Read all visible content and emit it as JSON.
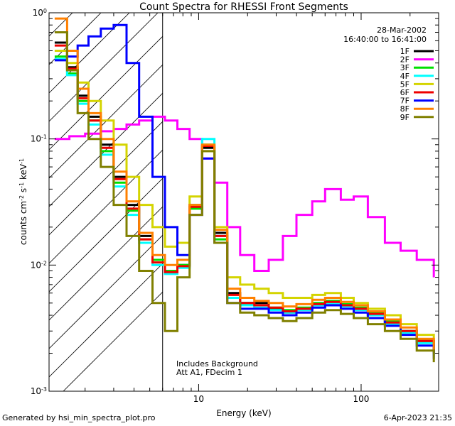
{
  "chart_data": {
    "type": "line",
    "title": "Count Spectra for RHESSI Front Segments",
    "xlabel": "Energy (keV)",
    "ylabel": "counts cm-2 s-1 keV-1",
    "xscale": "log",
    "yscale": "log",
    "xlim": [
      1.2,
      300
    ],
    "ylim": [
      0.001,
      1.0
    ],
    "x_tick_labels": [
      "10",
      "100"
    ],
    "y_tick_labels": [
      {
        "base": "10",
        "exp": "0",
        "value": 1
      },
      {
        "base": "10",
        "exp": "-1",
        "value": 0.1
      },
      {
        "base": "10",
        "exp": "-2",
        "value": 0.01
      },
      {
        "base": "10",
        "exp": "-3",
        "value": 0.001
      }
    ],
    "date": "28-Mar-2002",
    "time_range": "16:40:00 to 16:41:00",
    "annotations": [
      "Includes Background",
      "Att A1, FDecim 1"
    ],
    "shaded_region": {
      "x": [
        1.2,
        6.0
      ],
      "pattern": "diagonal hatch"
    },
    "legend_position": "top-right",
    "series": [
      {
        "name": "1F",
        "color": "#000000",
        "x": [
          1.3,
          1.55,
          1.8,
          2.1,
          2.5,
          3.0,
          3.6,
          4.3,
          5.2,
          6.2,
          7.4,
          8.8,
          10.5,
          12.5,
          15,
          18,
          22,
          27,
          33,
          40,
          50,
          60,
          75,
          90,
          110,
          140,
          175,
          220,
          280
        ],
        "y": [
          0.58,
          0.37,
          0.22,
          0.15,
          0.09,
          0.05,
          0.03,
          0.017,
          0.011,
          0.009,
          0.01,
          0.03,
          0.085,
          0.018,
          0.006,
          0.005,
          0.005,
          0.0045,
          0.0042,
          0.0045,
          0.0048,
          0.005,
          0.0048,
          0.0045,
          0.004,
          0.0035,
          0.003,
          0.0025,
          0.002
        ]
      },
      {
        "name": "2F",
        "color": "#ff00ff",
        "x": [
          1.3,
          1.6,
          2.0,
          2.5,
          3.0,
          3.6,
          4.3,
          5.2,
          6.2,
          7.4,
          8.8,
          10.5,
          12.5,
          15,
          18,
          22,
          27,
          33,
          40,
          50,
          60,
          75,
          90,
          110,
          140,
          175,
          220,
          280
        ],
        "y": [
          0.1,
          0.105,
          0.11,
          0.115,
          0.12,
          0.13,
          0.14,
          0.15,
          0.14,
          0.12,
          0.1,
          0.07,
          0.045,
          0.02,
          0.012,
          0.009,
          0.011,
          0.017,
          0.025,
          0.032,
          0.04,
          0.033,
          0.035,
          0.024,
          0.015,
          0.013,
          0.011,
          0.008
        ]
      },
      {
        "name": "3F",
        "color": "#00e000",
        "x": [
          1.3,
          1.55,
          1.8,
          2.1,
          2.5,
          3.0,
          3.6,
          4.3,
          5.2,
          6.2,
          7.4,
          8.8,
          10.5,
          12.5,
          15,
          18,
          22,
          27,
          33,
          40,
          50,
          60,
          75,
          90,
          110,
          140,
          175,
          220,
          280
        ],
        "y": [
          0.45,
          0.33,
          0.2,
          0.14,
          0.08,
          0.045,
          0.027,
          0.016,
          0.011,
          0.009,
          0.01,
          0.028,
          0.09,
          0.016,
          0.0055,
          0.005,
          0.0048,
          0.0046,
          0.0044,
          0.0046,
          0.005,
          0.0052,
          0.0049,
          0.0046,
          0.0042,
          0.0036,
          0.003,
          0.0025,
          0.002
        ]
      },
      {
        "name": "4F",
        "color": "#00ffff",
        "x": [
          1.3,
          1.55,
          1.8,
          2.1,
          2.5,
          3.0,
          3.6,
          4.3,
          5.2,
          6.2,
          7.4,
          8.8,
          10.5,
          12.5,
          15,
          18,
          22,
          27,
          33,
          40,
          50,
          60,
          75,
          90,
          110,
          140,
          175,
          220,
          280
        ],
        "y": [
          0.43,
          0.32,
          0.19,
          0.13,
          0.075,
          0.042,
          0.025,
          0.015,
          0.01,
          0.0085,
          0.0095,
          0.03,
          0.1,
          0.017,
          0.0055,
          0.0048,
          0.0046,
          0.0044,
          0.0042,
          0.0044,
          0.0048,
          0.005,
          0.0047,
          0.0044,
          0.004,
          0.0034,
          0.0029,
          0.0024,
          0.0019
        ]
      },
      {
        "name": "5F",
        "color": "#d4d400",
        "x": [
          1.3,
          1.55,
          1.8,
          2.1,
          2.5,
          3.0,
          3.6,
          4.3,
          5.2,
          6.2,
          7.4,
          8.8,
          10.5,
          12.5,
          15,
          18,
          22,
          27,
          33,
          40,
          50,
          60,
          75,
          90,
          110,
          140,
          175,
          220,
          280
        ],
        "y": [
          0.5,
          0.4,
          0.28,
          0.2,
          0.14,
          0.09,
          0.05,
          0.03,
          0.02,
          0.014,
          0.015,
          0.035,
          0.08,
          0.02,
          0.008,
          0.007,
          0.0065,
          0.006,
          0.0055,
          0.0055,
          0.0058,
          0.006,
          0.0055,
          0.005,
          0.0045,
          0.004,
          0.0034,
          0.0028,
          0.0023
        ]
      },
      {
        "name": "6F",
        "color": "#ee0000",
        "x": [
          1.3,
          1.55,
          1.8,
          2.1,
          2.5,
          3.0,
          3.6,
          4.3,
          5.2,
          6.2,
          7.4,
          8.8,
          10.5,
          12.5,
          15,
          18,
          22,
          27,
          33,
          40,
          50,
          60,
          75,
          90,
          110,
          140,
          175,
          220,
          280
        ],
        "y": [
          0.55,
          0.36,
          0.21,
          0.14,
          0.085,
          0.048,
          0.028,
          0.016,
          0.0105,
          0.0088,
          0.0098,
          0.029,
          0.088,
          0.017,
          0.0058,
          0.005,
          0.0048,
          0.0046,
          0.0043,
          0.0045,
          0.0049,
          0.0051,
          0.0048,
          0.0045,
          0.0041,
          0.0035,
          0.003,
          0.0025,
          0.002
        ]
      },
      {
        "name": "7F",
        "color": "#0000ff",
        "x": [
          1.3,
          1.55,
          1.8,
          2.1,
          2.5,
          3.0,
          3.6,
          4.3,
          5.2,
          6.2,
          7.4,
          8.8,
          10.5,
          12.5,
          15,
          18,
          22,
          27,
          33,
          40,
          50,
          60,
          75,
          90,
          110,
          140,
          175,
          220,
          280
        ],
        "y": [
          0.42,
          0.45,
          0.55,
          0.65,
          0.75,
          0.8,
          0.4,
          0.15,
          0.05,
          0.02,
          0.012,
          0.025,
          0.07,
          0.015,
          0.005,
          0.0045,
          0.0045,
          0.0042,
          0.004,
          0.0042,
          0.0046,
          0.0048,
          0.0045,
          0.0042,
          0.0038,
          0.0033,
          0.0028,
          0.0023,
          0.0018
        ]
      },
      {
        "name": "8F",
        "color": "#ff8000",
        "x": [
          1.3,
          1.55,
          1.8,
          2.1,
          2.5,
          3.0,
          3.6,
          4.3,
          5.2,
          6.2,
          7.4,
          8.8,
          10.5,
          12.5,
          15,
          18,
          22,
          27,
          33,
          40,
          50,
          60,
          75,
          90,
          110,
          140,
          175,
          220,
          280
        ],
        "y": [
          0.9,
          0.5,
          0.25,
          0.16,
          0.1,
          0.055,
          0.032,
          0.018,
          0.012,
          0.01,
          0.011,
          0.03,
          0.09,
          0.019,
          0.0065,
          0.0055,
          0.0052,
          0.005,
          0.0047,
          0.0049,
          0.0053,
          0.0055,
          0.0051,
          0.0048,
          0.0043,
          0.0037,
          0.0032,
          0.0026,
          0.0021
        ]
      },
      {
        "name": "9F",
        "color": "#808000",
        "x": [
          1.3,
          1.55,
          1.8,
          2.1,
          2.5,
          3.0,
          3.6,
          4.3,
          5.2,
          6.2,
          7.4,
          8.8,
          10.5,
          12.5,
          15,
          18,
          22,
          27,
          33,
          40,
          50,
          60,
          75,
          90,
          110,
          140,
          175,
          220,
          280
        ],
        "y": [
          0.7,
          0.35,
          0.16,
          0.1,
          0.06,
          0.03,
          0.017,
          0.009,
          0.005,
          0.003,
          0.008,
          0.025,
          0.08,
          0.015,
          0.005,
          0.0042,
          0.004,
          0.0038,
          0.0036,
          0.0038,
          0.0042,
          0.0044,
          0.0041,
          0.0038,
          0.0034,
          0.003,
          0.0026,
          0.0021,
          0.0017
        ]
      }
    ]
  },
  "footer": {
    "generated_by": "Generated by hsi_min_spectra_plot.pro",
    "timestamp": "6-Apr-2023 21:35"
  }
}
